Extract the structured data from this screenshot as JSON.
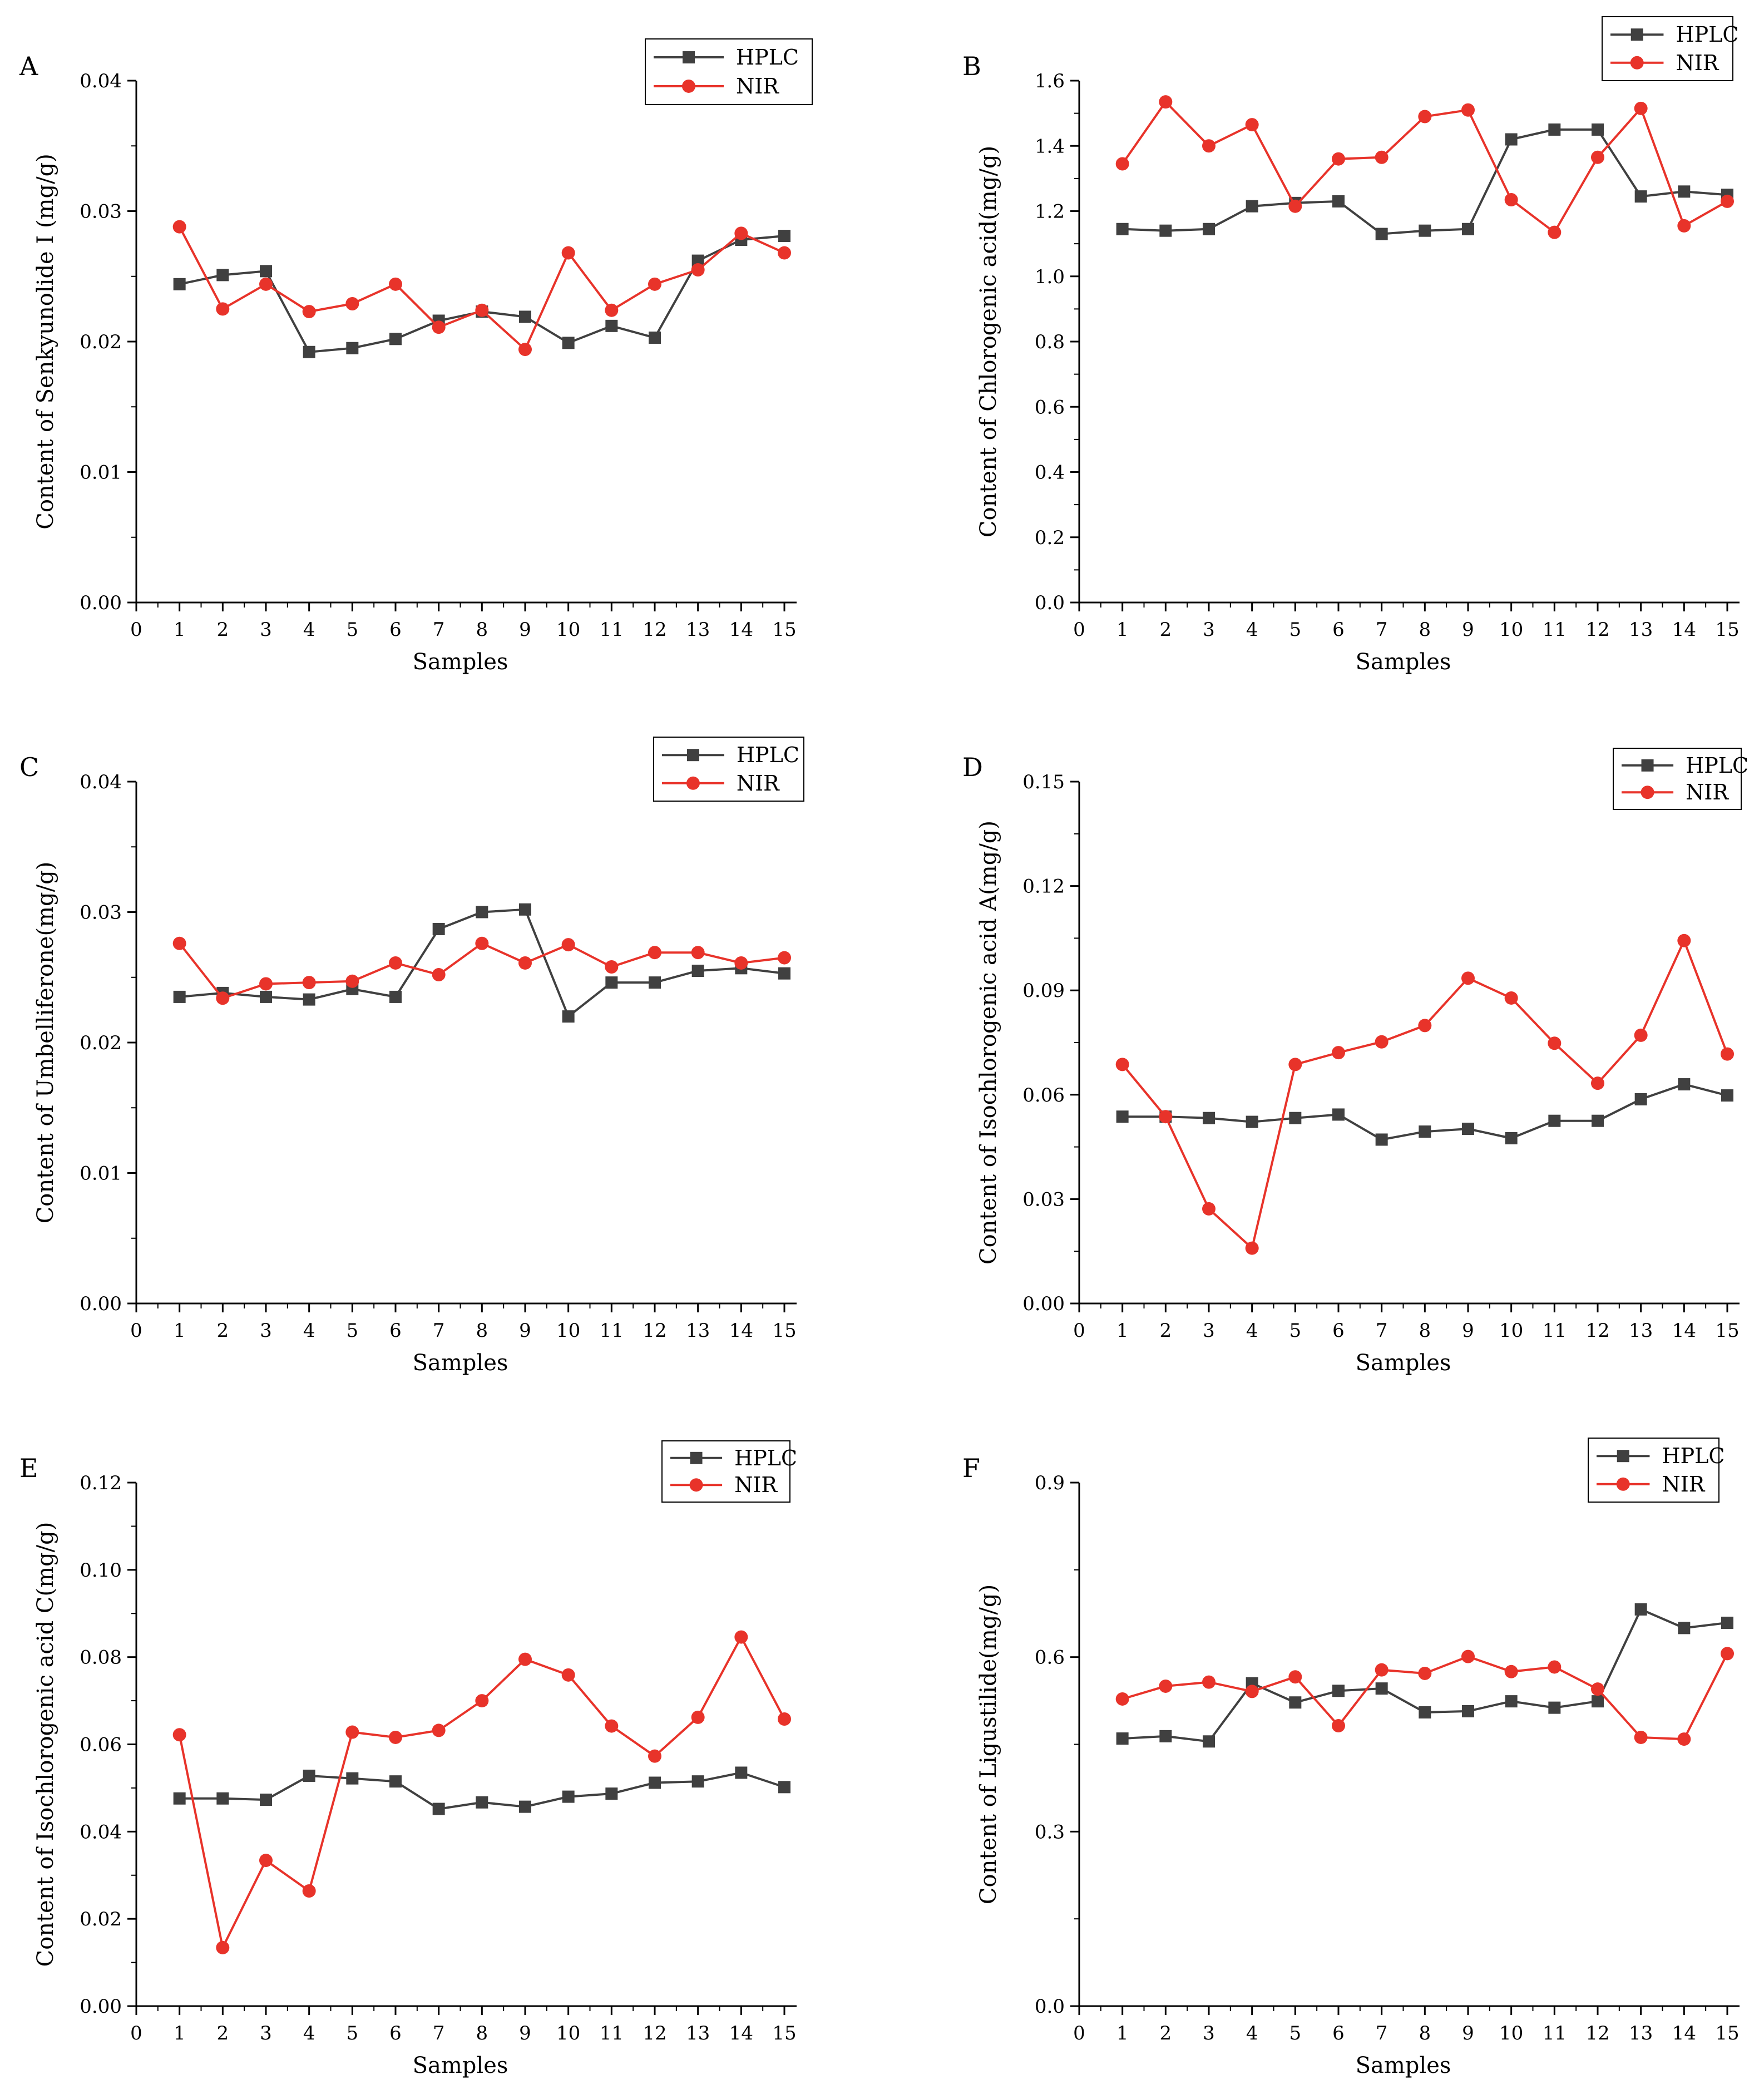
{
  "colors": {
    "hplc": "#404040",
    "nir": "#e8332a",
    "axis": "#000000"
  },
  "chart_data": [
    {
      "type": "line",
      "panel": "A",
      "title": "",
      "xlabel": "Samples",
      "ylabel": "Content of Senkyunolide I (mg/g)",
      "xlim": [
        0,
        15
      ],
      "ylim": [
        0,
        0.04
      ],
      "xticks": [
        "0",
        "1",
        "2",
        "3",
        "4",
        "5",
        "6",
        "7",
        "8",
        "9",
        "10",
        "11",
        "12",
        "13",
        "14",
        "15"
      ],
      "yticks": [
        "0.00",
        "0.01",
        "0.02",
        "0.03",
        "0.04"
      ],
      "legend": "top-right",
      "grid": false,
      "x": [
        1,
        2,
        3,
        4,
        5,
        6,
        7,
        8,
        9,
        10,
        11,
        12,
        13,
        14,
        15
      ],
      "series": [
        {
          "name": "HPLC",
          "marker": "square",
          "values": [
            0.0244,
            0.0251,
            0.0254,
            0.0192,
            0.0195,
            0.0202,
            0.0216,
            0.0223,
            0.0219,
            0.0199,
            0.0212,
            0.0203,
            0.0262,
            0.0278,
            0.0281
          ]
        },
        {
          "name": "NIR",
          "marker": "circle",
          "values": [
            0.0288,
            0.0225,
            0.0244,
            0.0223,
            0.0229,
            0.0244,
            0.0211,
            0.0224,
            0.0194,
            0.0268,
            0.0224,
            0.0244,
            0.0255,
            0.0283,
            0.0268
          ]
        }
      ]
    },
    {
      "type": "line",
      "panel": "B",
      "title": "",
      "xlabel": "Samples",
      "ylabel": "Content of Chlorogenic acid(mg/g)",
      "xlim": [
        0,
        15
      ],
      "ylim": [
        0,
        1.6
      ],
      "xticks": [
        "0",
        "1",
        "2",
        "3",
        "4",
        "5",
        "6",
        "7",
        "8",
        "9",
        "10",
        "11",
        "12",
        "13",
        "14",
        "15"
      ],
      "yticks": [
        "0.0",
        "0.2",
        "0.4",
        "0.6",
        "0.8",
        "1.0",
        "1.2",
        "1.4",
        "1.6"
      ],
      "legend": "top-right",
      "grid": false,
      "x": [
        1,
        2,
        3,
        4,
        5,
        6,
        7,
        8,
        9,
        10,
        11,
        12,
        13,
        14,
        15
      ],
      "series": [
        {
          "name": "HPLC",
          "marker": "square",
          "values": [
            1.145,
            1.14,
            1.145,
            1.215,
            1.225,
            1.23,
            1.13,
            1.14,
            1.145,
            1.42,
            1.45,
            1.45,
            1.245,
            1.26,
            1.25
          ]
        },
        {
          "name": "NIR",
          "marker": "circle",
          "values": [
            1.345,
            1.535,
            1.4,
            1.465,
            1.215,
            1.36,
            1.365,
            1.49,
            1.51,
            1.235,
            1.135,
            1.365,
            1.515,
            1.155,
            1.23
          ]
        }
      ]
    },
    {
      "type": "line",
      "panel": "C",
      "title": "",
      "xlabel": "Samples",
      "ylabel": "Content of Umbelliferone(mg/g)",
      "xlim": [
        0,
        15
      ],
      "ylim": [
        0,
        0.04
      ],
      "xticks": [
        "0",
        "1",
        "2",
        "3",
        "4",
        "5",
        "6",
        "7",
        "8",
        "9",
        "10",
        "11",
        "12",
        "13",
        "14",
        "15"
      ],
      "yticks": [
        "0.00",
        "0.01",
        "0.02",
        "0.03",
        "0.04"
      ],
      "legend": "top-right",
      "grid": false,
      "x": [
        1,
        2,
        3,
        4,
        5,
        6,
        7,
        8,
        9,
        10,
        11,
        12,
        13,
        14,
        15
      ],
      "series": [
        {
          "name": "HPLC",
          "marker": "square",
          "values": [
            0.0235,
            0.0238,
            0.0235,
            0.0233,
            0.0241,
            0.0235,
            0.0287,
            0.03,
            0.0302,
            0.022,
            0.0246,
            0.0246,
            0.0255,
            0.0257,
            0.0253
          ]
        },
        {
          "name": "NIR",
          "marker": "circle",
          "values": [
            0.0276,
            0.0234,
            0.0245,
            0.0246,
            0.0247,
            0.0261,
            0.0252,
            0.0276,
            0.0261,
            0.0275,
            0.0258,
            0.0269,
            0.0269,
            0.0261,
            0.0265
          ]
        }
      ]
    },
    {
      "type": "line",
      "panel": "D",
      "title": "",
      "xlabel": "Samples",
      "ylabel": "Content of Isochlorogenic acid A(mg/g)",
      "xlim": [
        0,
        15
      ],
      "ylim": [
        0,
        0.15
      ],
      "xticks": [
        "0",
        "1",
        "2",
        "3",
        "4",
        "5",
        "6",
        "7",
        "8",
        "9",
        "10",
        "11",
        "12",
        "13",
        "14",
        "15"
      ],
      "yticks": [
        "0.00",
        "0.03",
        "0.06",
        "0.09",
        "0.12",
        "0.15"
      ],
      "legend": "top-right",
      "grid": false,
      "x": [
        1,
        2,
        3,
        4,
        5,
        6,
        7,
        8,
        9,
        10,
        11,
        12,
        13,
        14,
        15
      ],
      "series": [
        {
          "name": "HPLC",
          "marker": "square",
          "values": [
            0.0537,
            0.0537,
            0.0533,
            0.0522,
            0.0533,
            0.0543,
            0.0471,
            0.0494,
            0.0502,
            0.0475,
            0.0525,
            0.0525,
            0.0587,
            0.063,
            0.0598
          ]
        },
        {
          "name": "NIR",
          "marker": "circle",
          "values": [
            0.0687,
            0.0537,
            0.0272,
            0.0159,
            0.0687,
            0.0721,
            0.0752,
            0.0799,
            0.0935,
            0.0878,
            0.0748,
            0.0633,
            0.0771,
            0.1043,
            0.0717
          ]
        }
      ]
    },
    {
      "type": "line",
      "panel": "E",
      "title": "",
      "xlabel": "Samples",
      "ylabel": "Content of Isochlorogenic acid C(mg/g)",
      "xlim": [
        0,
        15
      ],
      "ylim": [
        0,
        0.12
      ],
      "xticks": [
        "0",
        "1",
        "2",
        "3",
        "4",
        "5",
        "6",
        "7",
        "8",
        "9",
        "10",
        "11",
        "12",
        "13",
        "14",
        "15"
      ],
      "yticks": [
        "0.00",
        "0.02",
        "0.04",
        "0.06",
        "0.08",
        "0.10",
        "0.12"
      ],
      "legend": "top-right",
      "grid": false,
      "x": [
        1,
        2,
        3,
        4,
        5,
        6,
        7,
        8,
        9,
        10,
        11,
        12,
        13,
        14,
        15
      ],
      "series": [
        {
          "name": "HPLC",
          "marker": "square",
          "values": [
            0.0476,
            0.0476,
            0.0473,
            0.0528,
            0.0522,
            0.0515,
            0.0452,
            0.0467,
            0.0457,
            0.048,
            0.0487,
            0.0512,
            0.0515,
            0.0535,
            0.0502
          ]
        },
        {
          "name": "NIR",
          "marker": "circle",
          "values": [
            0.0622,
            0.0134,
            0.0334,
            0.0264,
            0.0628,
            0.0616,
            0.0632,
            0.07,
            0.0795,
            0.0759,
            0.0642,
            0.0573,
            0.0662,
            0.0846,
            0.0658
          ]
        }
      ]
    },
    {
      "type": "line",
      "panel": "F",
      "title": "",
      "xlabel": "Samples",
      "ylabel": "Content of Ligustilide(mg/g)",
      "xlim": [
        0,
        15
      ],
      "ylim": [
        0,
        0.9
      ],
      "xticks": [
        "0",
        "1",
        "2",
        "3",
        "4",
        "5",
        "6",
        "7",
        "8",
        "9",
        "10",
        "11",
        "12",
        "13",
        "14",
        "15"
      ],
      "yticks": [
        "0.0",
        "0.3",
        "0.6",
        "0.9"
      ],
      "legend": "top-right",
      "grid": false,
      "x": [
        1,
        2,
        3,
        4,
        5,
        6,
        7,
        8,
        9,
        10,
        11,
        12,
        13,
        14,
        15
      ],
      "series": [
        {
          "name": "HPLC",
          "marker": "square",
          "values": [
            0.46,
            0.464,
            0.455,
            0.555,
            0.522,
            0.542,
            0.546,
            0.505,
            0.507,
            0.524,
            0.513,
            0.524,
            0.682,
            0.65,
            0.659
          ]
        },
        {
          "name": "NIR",
          "marker": "circle",
          "values": [
            0.528,
            0.55,
            0.557,
            0.541,
            0.566,
            0.482,
            0.578,
            0.572,
            0.601,
            0.575,
            0.583,
            0.545,
            0.462,
            0.459,
            0.606
          ]
        }
      ]
    }
  ]
}
